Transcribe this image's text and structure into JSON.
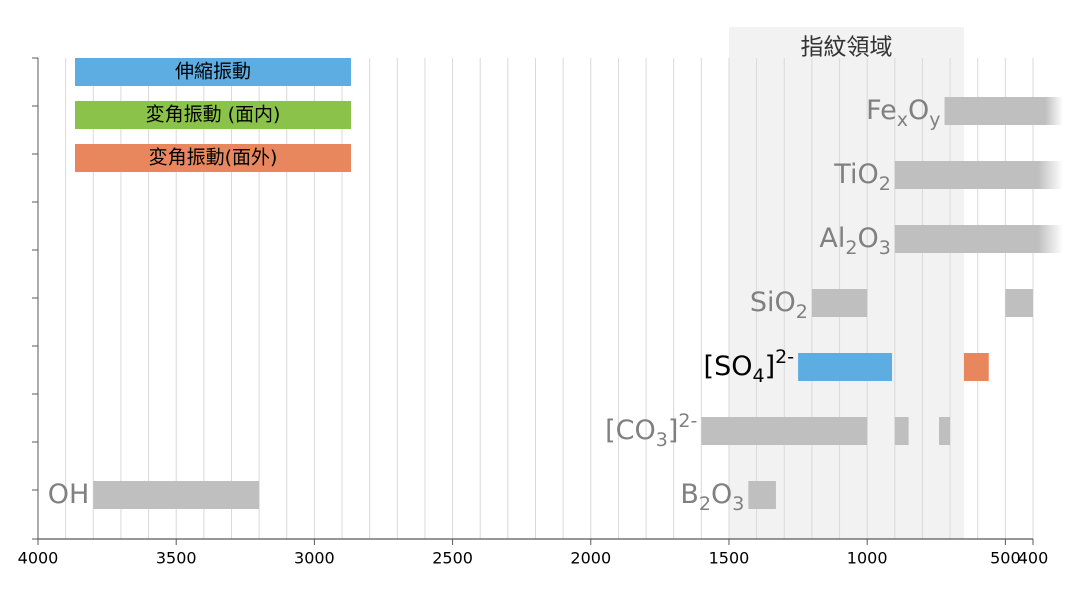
{
  "chart_data": {
    "type": "range-bar",
    "xlim": [
      4000,
      400
    ],
    "xticks": [
      4000,
      3500,
      3000,
      2500,
      2000,
      1500,
      1000,
      500,
      400
    ],
    "xgrid": [
      4000,
      3900,
      3800,
      3700,
      3600,
      3500,
      3400,
      3300,
      3200,
      3100,
      3000,
      2900,
      2800,
      2700,
      2600,
      2500,
      2400,
      2300,
      2200,
      2100,
      2000,
      1900,
      1800,
      1700,
      1600,
      1500,
      1400,
      1300,
      1200,
      1100,
      1000,
      900,
      800,
      700,
      600,
      500,
      400
    ],
    "grid_color": "#d9d9d9",
    "default_color": "#bfbfbf",
    "region": {
      "label": "指紋領域",
      "range": [
        1500,
        650
      ],
      "color": "#f2f2f2"
    },
    "series": [
      {
        "name": "伸縮振動",
        "color": "#5dade2"
      },
      {
        "name": "変角振動 (面内)",
        "color": "#8bc34a"
      },
      {
        "name": "変角振動(面外)",
        "color": "#e8875e"
      }
    ],
    "rows": [
      {
        "groups": [
          {
            "label_color": "#808080",
            "label": [
              {
                "text": "Fe"
              },
              {
                "text": "x",
                "shift": "sub"
              },
              {
                "text": "O"
              },
              {
                "text": "y",
                "shift": "sub"
              }
            ],
            "bars": [
              {
                "range": [
                  720,
                  400
                ],
                "fade": true
              }
            ]
          }
        ]
      },
      {
        "groups": [
          {
            "label_color": "#808080",
            "label": [
              {
                "text": "TiO"
              },
              {
                "text": "2",
                "shift": "sub"
              }
            ],
            "bars": [
              {
                "range": [
                  900,
                  400
                ],
                "fade": true
              }
            ]
          }
        ]
      },
      {
        "groups": [
          {
            "label_color": "#808080",
            "label": [
              {
                "text": "Al"
              },
              {
                "text": "2",
                "shift": "sub"
              },
              {
                "text": "O"
              },
              {
                "text": "3",
                "shift": "sub"
              }
            ],
            "bars": [
              {
                "range": [
                  900,
                  400
                ],
                "fade": true
              }
            ]
          }
        ]
      },
      {
        "groups": [
          {
            "label_color": "#808080",
            "label": [
              {
                "text": "SiO"
              },
              {
                "text": "2",
                "shift": "sub"
              }
            ],
            "bars": [
              {
                "range": [
                  1200,
                  1000
                ]
              },
              {
                "range": [
                  500,
                  400
                ]
              }
            ]
          }
        ]
      },
      {
        "groups": [
          {
            "label_color": "#000000",
            "label": [
              {
                "text": "[SO"
              },
              {
                "text": "4",
                "shift": "sub"
              },
              {
                "text": "]"
              },
              {
                "text": "2-",
                "shift": "sup"
              }
            ],
            "bars": [
              {
                "range": [
                  1250,
                  910
                ],
                "series": 0
              },
              {
                "range": [
                  650,
                  560
                ],
                "series": 2
              }
            ]
          }
        ]
      },
      {
        "groups": [
          {
            "label_color": "#808080",
            "label": [
              {
                "text": "[CO"
              },
              {
                "text": "3",
                "shift": "sub"
              },
              {
                "text": "]"
              },
              {
                "text": "2-",
                "shift": "sup"
              }
            ],
            "bars": [
              {
                "range": [
                  1600,
                  1000
                ]
              },
              {
                "range": [
                  900,
                  850
                ]
              },
              {
                "range": [
                  740,
                  700
                ]
              }
            ]
          }
        ]
      },
      {
        "groups": [
          {
            "label_color": "#808080",
            "label": [
              {
                "text": "OH"
              }
            ],
            "bars": [
              {
                "range": [
                  3800,
                  3200
                ]
              }
            ]
          },
          {
            "label_color": "#808080",
            "label": [
              {
                "text": "B"
              },
              {
                "text": "2",
                "shift": "sub"
              },
              {
                "text": "O"
              },
              {
                "text": "3",
                "shift": "sub"
              }
            ],
            "bars": [
              {
                "range": [
                  1430,
                  1330
                ]
              }
            ]
          }
        ]
      }
    ]
  }
}
